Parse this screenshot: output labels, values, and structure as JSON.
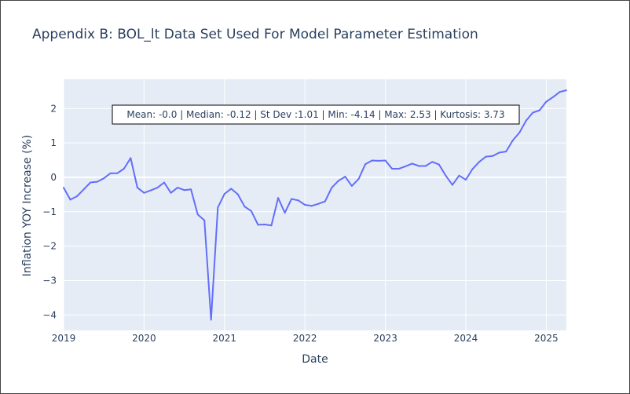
{
  "chart_data": {
    "type": "line",
    "title": "Appendix B: BOL_lt Data Set Used For Model Parameter Estimation",
    "xlabel": "Date",
    "ylabel": "Inflation YOY Increase (%)",
    "x_ticks": [
      "2019",
      "2020",
      "2021",
      "2022",
      "2023",
      "2024",
      "2025"
    ],
    "y_ticks": [
      -4,
      -3,
      -2,
      -1,
      0,
      1,
      2
    ],
    "y_tick_labels": [
      "−4",
      "−3",
      "−2",
      "−1",
      "0",
      "1",
      "2"
    ],
    "xlim": [
      "2019-01",
      "2025-04"
    ],
    "ylim": [
      -4.45,
      2.85
    ],
    "grid": true,
    "line_color": "#636efa",
    "plot_background": "#e5ecf6",
    "annotation": "Mean: -0.0 | Median: -0.12 | St Dev :1.01 | Min: -4.14 | Max: 2.53 | Kurtosis: 3.73",
    "series": [
      {
        "x": [
          "2019-01",
          "2019-02",
          "2019-03",
          "2019-04",
          "2019-05",
          "2019-06",
          "2019-07",
          "2019-08",
          "2019-09",
          "2019-10",
          "2019-11",
          "2019-12",
          "2020-01",
          "2020-02",
          "2020-03",
          "2020-04",
          "2020-05",
          "2020-06",
          "2020-07",
          "2020-08",
          "2020-09",
          "2020-10",
          "2020-11",
          "2020-12",
          "2021-01",
          "2021-02",
          "2021-03",
          "2021-04",
          "2021-05",
          "2021-06",
          "2021-07",
          "2021-08",
          "2021-09",
          "2021-10",
          "2021-11",
          "2021-12",
          "2022-01",
          "2022-02",
          "2022-03",
          "2022-04",
          "2022-05",
          "2022-06",
          "2022-07",
          "2022-08",
          "2022-09",
          "2022-10",
          "2022-11",
          "2022-12",
          "2023-01",
          "2023-02",
          "2023-03",
          "2023-04",
          "2023-05",
          "2023-06",
          "2023-07",
          "2023-08",
          "2023-09",
          "2023-10",
          "2023-11",
          "2023-12",
          "2024-01",
          "2024-02",
          "2024-03",
          "2024-04",
          "2024-05",
          "2024-06",
          "2024-07",
          "2024-08",
          "2024-09",
          "2024-10",
          "2024-11",
          "2024-12",
          "2025-01",
          "2025-02",
          "2025-03",
          "2025-04"
        ],
        "y": [
          -0.3,
          -0.65,
          -0.55,
          -0.35,
          -0.15,
          -0.13,
          -0.03,
          0.12,
          0.12,
          0.25,
          0.56,
          -0.3,
          -0.45,
          -0.38,
          -0.3,
          -0.15,
          -0.45,
          -0.3,
          -0.37,
          -0.35,
          -1.08,
          -1.25,
          -4.14,
          -0.88,
          -0.48,
          -0.33,
          -0.5,
          -0.85,
          -0.98,
          -1.38,
          -1.37,
          -1.4,
          -0.6,
          -1.03,
          -0.63,
          -0.67,
          -0.8,
          -0.83,
          -0.77,
          -0.7,
          -0.3,
          -0.1,
          0.02,
          -0.25,
          -0.05,
          0.38,
          0.49,
          0.48,
          0.49,
          0.25,
          0.25,
          0.32,
          0.4,
          0.33,
          0.33,
          0.45,
          0.37,
          0.05,
          -0.22,
          0.05,
          -0.07,
          0.24,
          0.45,
          0.6,
          0.62,
          0.72,
          0.75,
          1.07,
          1.3,
          1.65,
          1.88,
          1.95,
          2.2,
          2.33,
          2.48,
          2.53
        ]
      }
    ]
  }
}
